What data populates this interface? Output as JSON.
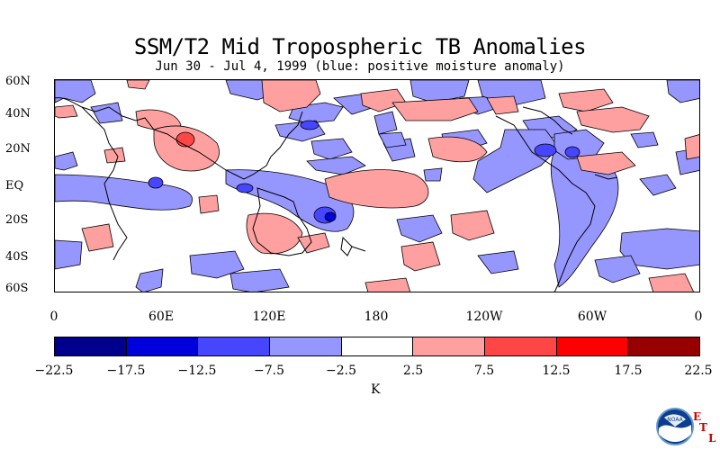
{
  "title": "SSM/T2 Mid Tropospheric TB Anomalies",
  "subtitle": "Jun 30 - Jul 4, 1999 (blue: positive moisture anomaly)",
  "lat_labels": [
    "60N",
    "40N",
    "20N",
    "EQ",
    "20S",
    "40S",
    "60S"
  ],
  "lon_labels": [
    "0",
    "60E",
    "120E",
    "180",
    "120W",
    "60W",
    "0"
  ],
  "colorbar": {
    "colors": [
      "#00008c",
      "#0000dc",
      "#4646ff",
      "#9696ff",
      "#ffffff",
      "#ffa0a0",
      "#ff4646",
      "#ff0000",
      "#960000"
    ],
    "ticks": [
      "−22.5",
      "−17.5",
      "−12.5",
      "−7.5",
      "−2.5",
      "2.5",
      "7.5",
      "12.5",
      "17.5",
      "22.5"
    ],
    "unit": "K"
  },
  "logo": {
    "name": "NOAA",
    "letters": [
      "E",
      "T",
      "L"
    ]
  },
  "colors": {
    "blue_light": "#9696ff",
    "blue_mid": "#4646ff",
    "red_light": "#ffa0a0",
    "red_mid": "#ff4646",
    "red_strong": "#ff0000"
  }
}
